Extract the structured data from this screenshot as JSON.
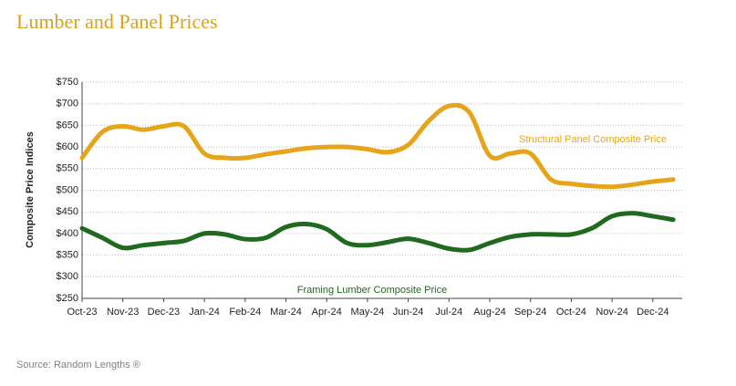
{
  "chart_data": {
    "type": "line",
    "title": "Lumber and Panel Prices",
    "y_label": "Composite Price Indices",
    "source": "Source: Random Lengths ®",
    "categories": [
      "Oct-23",
      null,
      "Nov-23",
      null,
      "Dec-23",
      null,
      "Jan-24",
      null,
      "Feb-24",
      null,
      "Mar-24",
      null,
      "Apr-24",
      null,
      "May-24",
      null,
      "Jun-24",
      null,
      "Jul-24",
      null,
      "Aug-24",
      null,
      "Sep-24",
      null,
      "Oct-24",
      null,
      "Nov-24",
      null,
      "Dec-24",
      null
    ],
    "series": [
      {
        "name": "Structural Panel Composite Price",
        "color": "#e5a41a",
        "values": [
          575,
          635,
          648,
          640,
          648,
          648,
          585,
          575,
          575,
          583,
          590,
          597,
          600,
          600,
          595,
          588,
          605,
          660,
          695,
          680,
          580,
          585,
          585,
          525,
          515,
          510,
          508,
          513,
          520,
          525
        ]
      },
      {
        "name": "Framing Lumber Composite Price",
        "color": "#1f6a1f",
        "values": [
          412,
          390,
          367,
          373,
          378,
          383,
          400,
          398,
          387,
          390,
          415,
          422,
          410,
          378,
          373,
          380,
          388,
          378,
          365,
          362,
          378,
          392,
          398,
          398,
          398,
          412,
          440,
          447,
          440,
          432
        ]
      }
    ],
    "ylim": [
      250,
      750
    ],
    "yticks": [
      {
        "value": 250,
        "label": "$250"
      },
      {
        "value": 300,
        "label": "$300"
      },
      {
        "value": 350,
        "label": "$350"
      },
      {
        "value": 400,
        "label": "$400"
      },
      {
        "value": 450,
        "label": "$450"
      },
      {
        "value": 500,
        "label": "$500"
      },
      {
        "value": 550,
        "label": "$550"
      },
      {
        "value": 600,
        "label": "$600"
      },
      {
        "value": 650,
        "label": "$650"
      },
      {
        "value": 700,
        "label": "$700"
      },
      {
        "value": 750,
        "label": "$750"
      }
    ],
    "grid": true
  }
}
